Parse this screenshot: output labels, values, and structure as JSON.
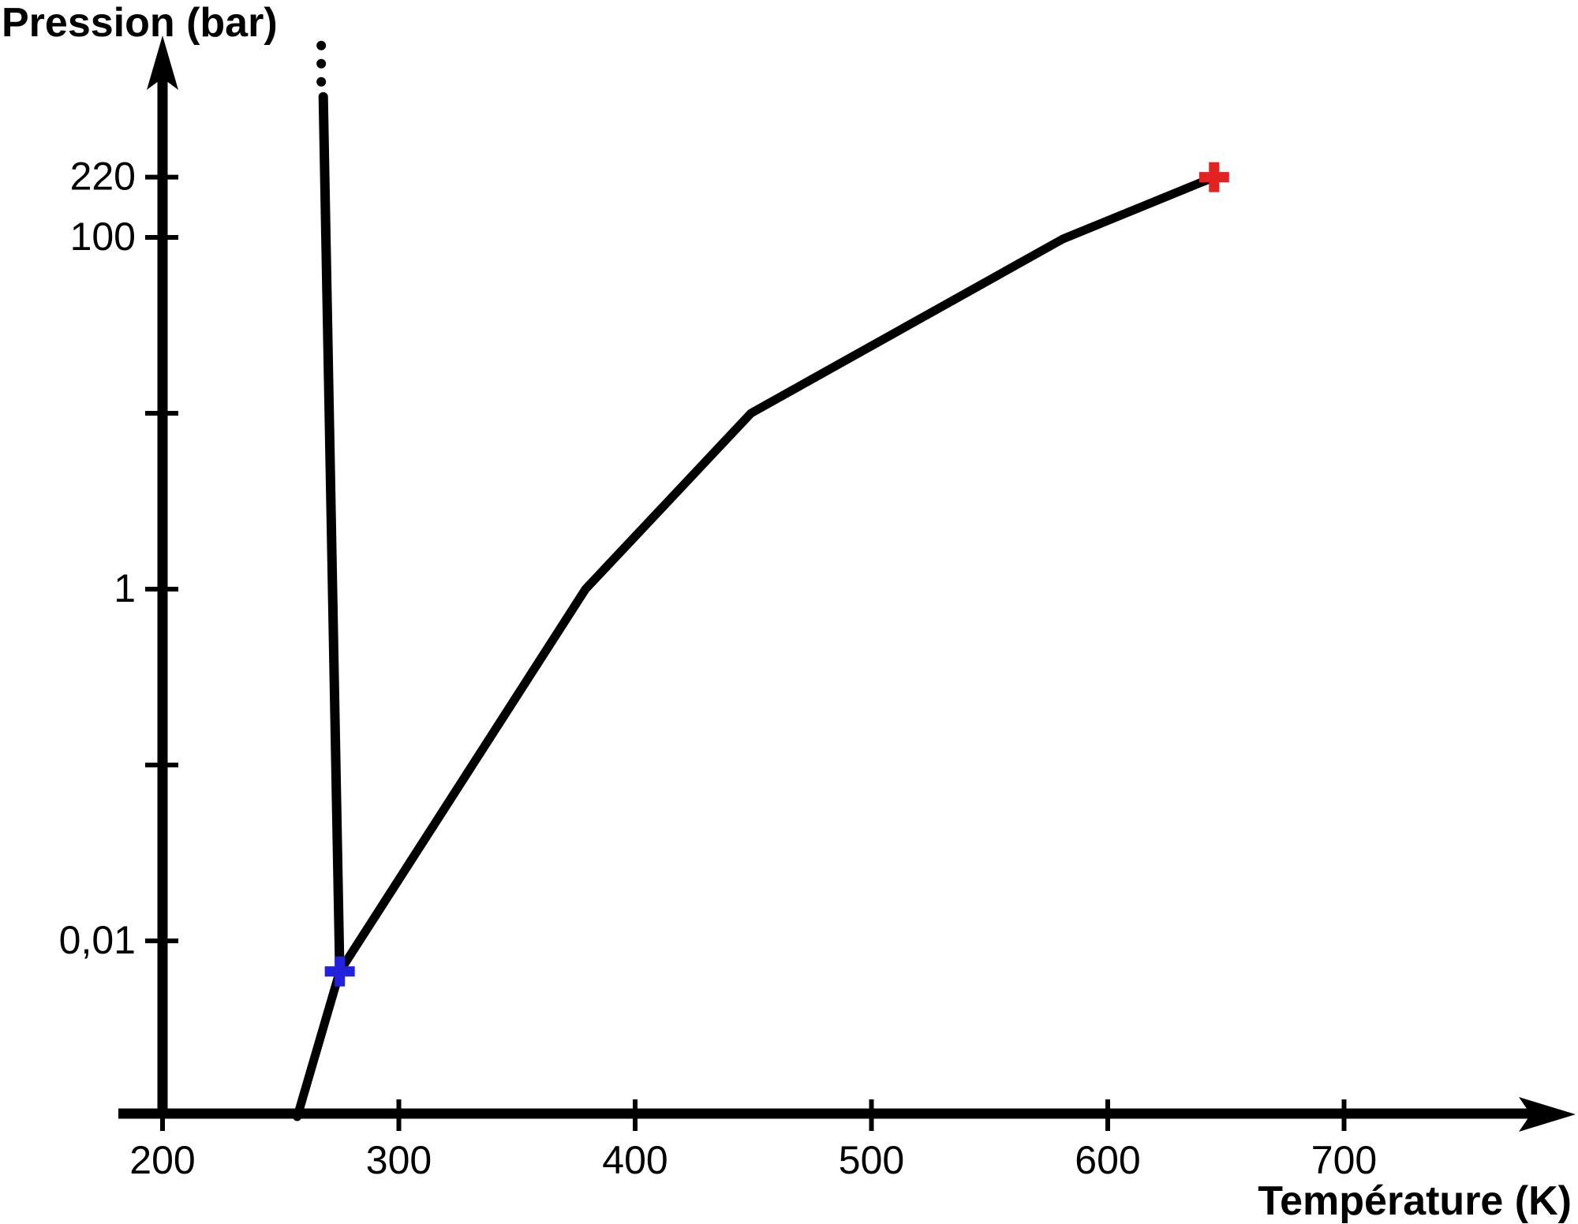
{
  "chart_data": {
    "type": "line",
    "title": "",
    "xlabel": "Température (K)",
    "ylabel": "Pression (bar)",
    "x_scale": "linear",
    "y_scale": "log",
    "xlim": [
      200,
      760
    ],
    "ylim": [
      0.001,
      1000
    ],
    "grid": false,
    "legend": "none",
    "x_ticks": [
      {
        "value": 200,
        "label": "200"
      },
      {
        "value": 300,
        "label": "300"
      },
      {
        "value": 400,
        "label": "400"
      },
      {
        "value": 500,
        "label": "500"
      },
      {
        "value": 600,
        "label": "600"
      },
      {
        "value": 700,
        "label": "700"
      }
    ],
    "y_ticks": [
      {
        "value": 220,
        "label": "220"
      },
      {
        "value": 100,
        "label": "100"
      },
      {
        "value": 10,
        "label": ""
      },
      {
        "value": 1,
        "label": "1"
      },
      {
        "value": 0.1,
        "label": ""
      },
      {
        "value": 0.01,
        "label": "0,01"
      }
    ],
    "series": [
      {
        "name": "sublimation-curve",
        "points": [
          [
            257,
            0.001
          ],
          [
            275,
            0.0067
          ]
        ]
      },
      {
        "name": "vaporization-curve",
        "points": [
          [
            275,
            0.0067
          ],
          [
            379,
            1
          ],
          [
            449,
            10
          ],
          [
            581,
            98
          ],
          [
            645,
            220
          ]
        ]
      },
      {
        "name": "fusion-curve",
        "points": [
          [
            275,
            0.0067
          ],
          [
            268,
            630
          ]
        ],
        "continuation_dots": 3
      }
    ],
    "markers": [
      {
        "name": "triple-point",
        "x": 275,
        "y": 0.0067,
        "shape": "cross",
        "color": "#2222dd"
      },
      {
        "name": "critical-point",
        "x": 645,
        "y": 220,
        "shape": "cross",
        "color": "#e32222"
      }
    ],
    "line_color": "#000000",
    "axis_color": "#000000"
  }
}
